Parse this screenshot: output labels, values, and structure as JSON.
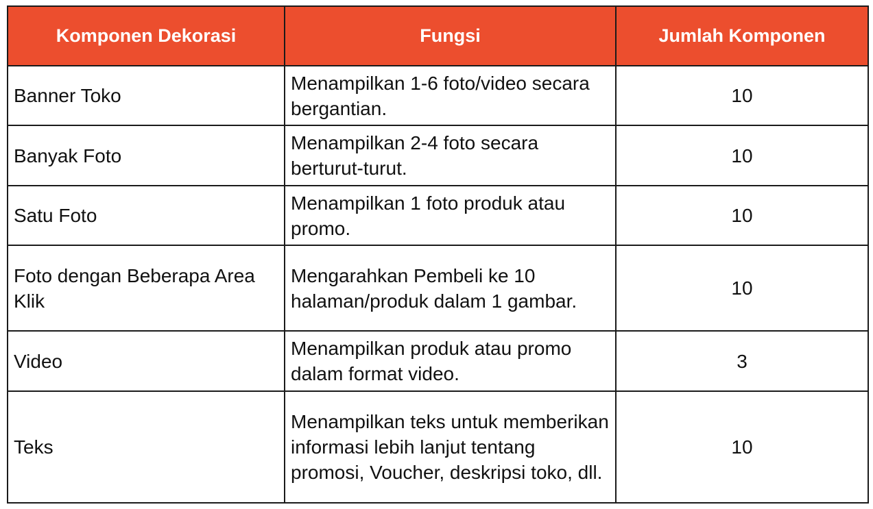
{
  "table": {
    "headers": [
      "Komponen Dekorasi",
      "Fungsi",
      "Jumlah Komponen"
    ],
    "header_color": "#ec4e2e",
    "rows": [
      {
        "komponen": "Banner Toko",
        "fungsi": "Menampilkan 1-6 foto/video secara bergantian.",
        "jumlah": "10"
      },
      {
        "komponen": "Banyak Foto",
        "fungsi": "Menampilkan 2-4 foto secara berturut-turut.",
        "jumlah": "10"
      },
      {
        "komponen": "Satu Foto",
        "fungsi": "Menampilkan 1 foto produk atau promo.",
        "jumlah": "10"
      },
      {
        "komponen": "Foto dengan Beberapa Area Klik",
        "fungsi": "Mengarahkan Pembeli ke 10 halaman/produk dalam 1 gambar.",
        "jumlah": "10"
      },
      {
        "komponen": "Video",
        "fungsi": "Menampilkan produk atau promo dalam format video.",
        "jumlah": "3"
      },
      {
        "komponen": "Teks",
        "fungsi": "Menampilkan teks untuk memberikan informasi lebih lanjut tentang promosi, Voucher, deskripsi toko, dll.",
        "jumlah": "10"
      }
    ]
  }
}
